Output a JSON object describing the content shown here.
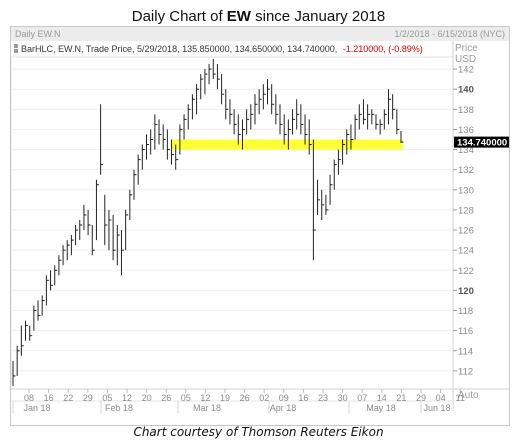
{
  "title_prefix": "Daily Chart of ",
  "title_ticker": "EW",
  "title_suffix": " since January 2018",
  "header": {
    "symbol": "Daily EW.N",
    "date_range": "1/2/2018 - 6/15/2018 (NYC)",
    "info_prefix": "BarHLC, EW.N, Trade Price, 5/29/2018, 135.850000, 134.650000, 134.740000,",
    "info_change": "-1.210000, (-0.89%)",
    "price_label": "Price",
    "currency_label": "USD",
    "auto_label": "Auto"
  },
  "last_price_label": "134.740000",
  "caption": "Chart courtesy of Thomson Reuters Eikon",
  "colors": {
    "support_band": "#ffff33",
    "change_text": "#d00000",
    "bars": "#222222",
    "last_price_bg": "#000000",
    "last_price_text": "#ffffff"
  },
  "chart_data": {
    "type": "bar",
    "subtype": "HLC",
    "ylim": [
      110,
      143
    ],
    "y_ticks": [
      "112",
      "114",
      "116",
      "118",
      "120",
      "122",
      "124",
      "126",
      "128",
      "130",
      "132",
      "134",
      "136",
      "138",
      "140",
      "142"
    ],
    "bold_y_ticks": [
      "120",
      "140"
    ],
    "x_ticks": [
      "08",
      "16",
      "22",
      "29",
      "05",
      "12",
      "20",
      "26",
      "05",
      "12",
      "19",
      "26",
      "02",
      "09",
      "16",
      "23",
      "30",
      "07",
      "14",
      "21",
      "29",
      "04",
      "11"
    ],
    "month_labels": [
      "Jan 18",
      "Feb 18",
      "Mar 18",
      "Apr 18",
      "May 18",
      "Jun 18"
    ],
    "support_band": [
      134,
      135
    ],
    "bars": [
      {
        "high": 113.0,
        "low": 110.5,
        "close": 111.5
      },
      {
        "high": 114.5,
        "low": 111.5,
        "close": 114.0
      },
      {
        "high": 116.5,
        "low": 113.5,
        "close": 114.5
      },
      {
        "high": 117.0,
        "low": 115.0,
        "close": 116.5
      },
      {
        "high": 116.5,
        "low": 115.0,
        "close": 115.5
      },
      {
        "high": 118.5,
        "low": 116.0,
        "close": 118.0
      },
      {
        "high": 119.0,
        "low": 117.0,
        "close": 117.5
      },
      {
        "high": 119.5,
        "low": 117.5,
        "close": 119.0
      },
      {
        "high": 121.5,
        "low": 118.5,
        "close": 121.0
      },
      {
        "high": 122.0,
        "low": 120.0,
        "close": 120.5
      },
      {
        "high": 122.5,
        "low": 120.5,
        "close": 122.0
      },
      {
        "high": 123.5,
        "low": 121.5,
        "close": 123.0
      },
      {
        "high": 124.5,
        "low": 122.5,
        "close": 124.0
      },
      {
        "high": 125.0,
        "low": 123.0,
        "close": 124.5
      },
      {
        "high": 125.5,
        "low": 123.5,
        "close": 125.0
      },
      {
        "high": 126.5,
        "low": 124.5,
        "close": 126.0
      },
      {
        "high": 127.0,
        "low": 125.0,
        "close": 126.5
      },
      {
        "high": 128.5,
        "low": 126.0,
        "close": 127.5
      },
      {
        "high": 128.0,
        "low": 125.5,
        "close": 126.5
      },
      {
        "high": 126.5,
        "low": 123.5,
        "close": 124.0
      },
      {
        "high": 131.0,
        "low": 125.0,
        "close": 130.5
      },
      {
        "high": 138.5,
        "low": 131.5,
        "close": 132.5
      },
      {
        "high": 129.5,
        "low": 124.5,
        "close": 126.5
      },
      {
        "high": 128.0,
        "low": 124.0,
        "close": 127.0
      },
      {
        "high": 127.5,
        "low": 123.0,
        "close": 124.0
      },
      {
        "high": 126.5,
        "low": 122.5,
        "close": 125.5
      },
      {
        "high": 126.0,
        "low": 121.5,
        "close": 124.0
      },
      {
        "high": 128.0,
        "low": 124.0,
        "close": 127.5
      },
      {
        "high": 130.0,
        "low": 127.0,
        "close": 129.5
      },
      {
        "high": 132.0,
        "low": 129.0,
        "close": 131.5
      },
      {
        "high": 133.5,
        "low": 130.5,
        "close": 133.0
      },
      {
        "high": 134.5,
        "low": 132.0,
        "close": 134.0
      },
      {
        "high": 135.5,
        "low": 133.0,
        "close": 134.5
      },
      {
        "high": 136.0,
        "low": 133.5,
        "close": 135.0
      },
      {
        "high": 137.5,
        "low": 134.0,
        "close": 136.5
      },
      {
        "high": 137.0,
        "low": 134.5,
        "close": 135.5
      },
      {
        "high": 136.5,
        "low": 134.0,
        "close": 135.0
      },
      {
        "high": 136.0,
        "low": 133.0,
        "close": 134.0
      },
      {
        "high": 135.0,
        "low": 132.5,
        "close": 133.5
      },
      {
        "high": 134.5,
        "low": 132.0,
        "close": 133.0
      },
      {
        "high": 136.5,
        "low": 133.5,
        "close": 136.0
      },
      {
        "high": 137.5,
        "low": 135.0,
        "close": 137.0
      },
      {
        "high": 138.5,
        "low": 136.0,
        "close": 138.0
      },
      {
        "high": 139.5,
        "low": 137.0,
        "close": 139.0
      },
      {
        "high": 140.5,
        "low": 137.5,
        "close": 140.0
      },
      {
        "high": 141.5,
        "low": 139.0,
        "close": 141.0
      },
      {
        "high": 142.0,
        "low": 139.5,
        "close": 141.5
      },
      {
        "high": 142.5,
        "low": 140.5,
        "close": 142.0
      },
      {
        "high": 143.0,
        "low": 141.0,
        "close": 141.5
      },
      {
        "high": 142.5,
        "low": 140.0,
        "close": 141.0
      },
      {
        "high": 141.5,
        "low": 138.5,
        "close": 139.5
      },
      {
        "high": 140.0,
        "low": 137.0,
        "close": 138.0
      },
      {
        "high": 139.0,
        "low": 136.5,
        "close": 137.5
      },
      {
        "high": 138.0,
        "low": 135.5,
        "close": 136.5
      },
      {
        "high": 137.5,
        "low": 134.5,
        "close": 135.5
      },
      {
        "high": 137.0,
        "low": 134.0,
        "close": 136.0
      },
      {
        "high": 138.0,
        "low": 135.5,
        "close": 137.0
      },
      {
        "high": 138.5,
        "low": 136.0,
        "close": 137.5
      },
      {
        "high": 139.5,
        "low": 136.5,
        "close": 138.5
      },
      {
        "high": 140.0,
        "low": 137.5,
        "close": 139.0
      },
      {
        "high": 140.5,
        "low": 138.0,
        "close": 139.5
      },
      {
        "high": 141.0,
        "low": 138.5,
        "close": 140.0
      },
      {
        "high": 140.5,
        "low": 137.5,
        "close": 138.5
      },
      {
        "high": 139.5,
        "low": 136.5,
        "close": 137.5
      },
      {
        "high": 138.5,
        "low": 135.5,
        "close": 136.5
      },
      {
        "high": 137.5,
        "low": 134.5,
        "close": 135.5
      },
      {
        "high": 137.0,
        "low": 134.0,
        "close": 136.0
      },
      {
        "high": 138.0,
        "low": 135.5,
        "close": 137.0
      },
      {
        "high": 139.0,
        "low": 136.0,
        "close": 137.5
      },
      {
        "high": 138.5,
        "low": 135.5,
        "close": 136.5
      },
      {
        "high": 137.5,
        "low": 134.5,
        "close": 135.5
      },
      {
        "high": 137.0,
        "low": 133.5,
        "close": 134.5
      },
      {
        "high": 135.0,
        "low": 123.0,
        "close": 126.0
      },
      {
        "high": 131.0,
        "low": 127.5,
        "close": 129.0
      },
      {
        "high": 130.0,
        "low": 127.0,
        "close": 128.5
      },
      {
        "high": 129.5,
        "low": 127.5,
        "close": 128.0
      },
      {
        "high": 131.5,
        "low": 128.5,
        "close": 130.5
      },
      {
        "high": 133.0,
        "low": 130.0,
        "close": 132.5
      },
      {
        "high": 134.0,
        "low": 131.5,
        "close": 133.0
      },
      {
        "high": 135.0,
        "low": 132.5,
        "close": 134.5
      },
      {
        "high": 136.0,
        "low": 133.5,
        "close": 135.5
      },
      {
        "high": 136.5,
        "low": 134.0,
        "close": 135.0
      },
      {
        "high": 137.5,
        "low": 135.0,
        "close": 137.0
      },
      {
        "high": 138.5,
        "low": 136.0,
        "close": 137.5
      },
      {
        "high": 139.0,
        "low": 136.5,
        "close": 137.0
      },
      {
        "high": 138.5,
        "low": 136.0,
        "close": 137.5
      },
      {
        "high": 138.0,
        "low": 136.5,
        "close": 137.5
      },
      {
        "high": 137.5,
        "low": 136.0,
        "close": 136.5
      },
      {
        "high": 137.0,
        "low": 135.5,
        "close": 136.5
      },
      {
        "high": 138.0,
        "low": 136.0,
        "close": 137.5
      },
      {
        "high": 140.0,
        "low": 136.5,
        "close": 139.0
      },
      {
        "high": 139.5,
        "low": 137.0,
        "close": 138.0
      },
      {
        "high": 138.0,
        "low": 135.5,
        "close": 136.0
      },
      {
        "high": 135.85,
        "low": 134.65,
        "close": 134.74
      }
    ]
  }
}
